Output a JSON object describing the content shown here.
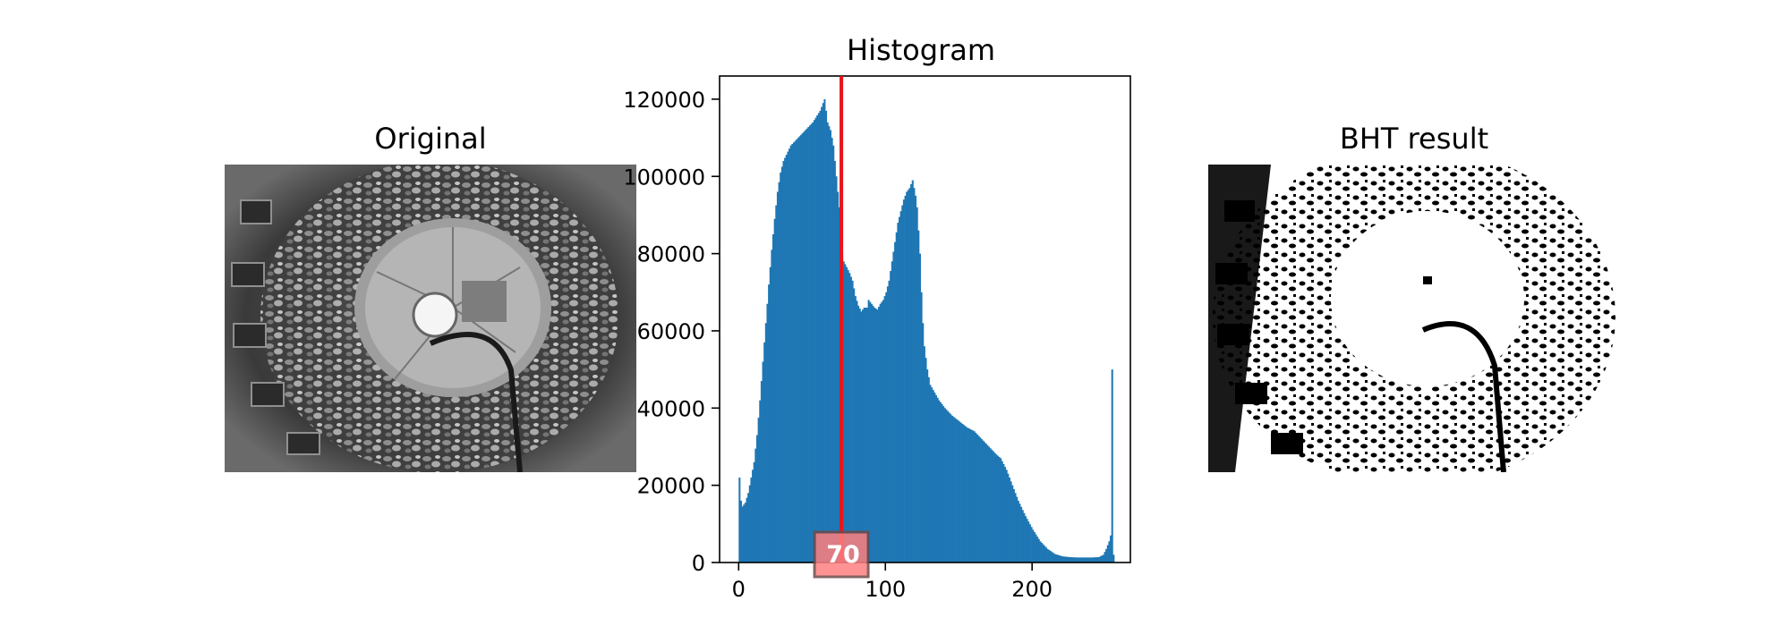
{
  "panels": {
    "original": {
      "title": "Original"
    },
    "histogram": {
      "title": "Histogram"
    },
    "result": {
      "title": "BHT result"
    }
  },
  "colors": {
    "bars": "#1f77b4",
    "threshold_line": "#e8141c",
    "threshold_box": "#ff7f7f",
    "axes": "#000000"
  },
  "chart_data": {
    "type": "bar",
    "title": "Histogram",
    "xlabel": "",
    "ylabel": "",
    "xlim": [
      -13,
      267
    ],
    "ylim": [
      0,
      126000
    ],
    "x_ticks": [
      0,
      100,
      200
    ],
    "y_ticks": [
      0,
      20000,
      40000,
      60000,
      80000,
      100000,
      120000
    ],
    "bins": 256,
    "profile": [
      [
        0,
        22000
      ],
      [
        1,
        16000
      ],
      [
        2,
        14500
      ],
      [
        4,
        15500
      ],
      [
        6,
        18000
      ],
      [
        8,
        22000
      ],
      [
        10,
        26000
      ],
      [
        12,
        33000
      ],
      [
        14,
        42000
      ],
      [
        16,
        52000
      ],
      [
        18,
        62000
      ],
      [
        20,
        72000
      ],
      [
        22,
        81000
      ],
      [
        24,
        89000
      ],
      [
        26,
        96000
      ],
      [
        28,
        101000
      ],
      [
        30,
        104000
      ],
      [
        35,
        108000
      ],
      [
        40,
        110000
      ],
      [
        45,
        112000
      ],
      [
        50,
        114000
      ],
      [
        55,
        117000
      ],
      [
        57,
        119000
      ],
      [
        58,
        120000
      ],
      [
        59,
        117000
      ],
      [
        60,
        114000
      ],
      [
        62,
        112000
      ],
      [
        64,
        108000
      ],
      [
        66,
        100000
      ],
      [
        68,
        92000
      ],
      [
        69,
        85000
      ],
      [
        70,
        80000
      ],
      [
        71,
        78000
      ],
      [
        73,
        76500
      ],
      [
        75,
        75000
      ],
      [
        77,
        73000
      ],
      [
        79,
        69000
      ],
      [
        81,
        66500
      ],
      [
        83,
        65000
      ],
      [
        85,
        66000
      ],
      [
        87,
        66000
      ],
      [
        88,
        68000
      ],
      [
        90,
        67000
      ],
      [
        92,
        66000
      ],
      [
        94,
        65500
      ],
      [
        96,
        67000
      ],
      [
        98,
        68000
      ],
      [
        100,
        70000
      ],
      [
        102,
        73000
      ],
      [
        104,
        78000
      ],
      [
        106,
        83000
      ],
      [
        108,
        88000
      ],
      [
        110,
        91000
      ],
      [
        112,
        94000
      ],
      [
        114,
        96000
      ],
      [
        116,
        97000
      ],
      [
        117,
        98000
      ],
      [
        118,
        99000
      ],
      [
        119,
        97000
      ],
      [
        120,
        95000
      ],
      [
        121,
        92000
      ],
      [
        122,
        86000
      ],
      [
        123,
        80000
      ],
      [
        124,
        70000
      ],
      [
        125,
        62000
      ],
      [
        126,
        56000
      ],
      [
        128,
        50000
      ],
      [
        130,
        46000
      ],
      [
        133,
        44000
      ],
      [
        136,
        42000
      ],
      [
        140,
        40000
      ],
      [
        145,
        38000
      ],
      [
        150,
        36500
      ],
      [
        155,
        35000
      ],
      [
        160,
        34000
      ],
      [
        165,
        32000
      ],
      [
        170,
        30000
      ],
      [
        175,
        28000
      ],
      [
        178,
        27000
      ],
      [
        182,
        24000
      ],
      [
        186,
        20000
      ],
      [
        190,
        16000
      ],
      [
        195,
        12000
      ],
      [
        200,
        8500
      ],
      [
        205,
        5500
      ],
      [
        210,
        3500
      ],
      [
        215,
        2200
      ],
      [
        220,
        1600
      ],
      [
        225,
        1400
      ],
      [
        230,
        1300
      ],
      [
        235,
        1300
      ],
      [
        240,
        1300
      ],
      [
        245,
        1400
      ],
      [
        248,
        2000
      ],
      [
        250,
        3500
      ],
      [
        252,
        5500
      ],
      [
        253,
        7000
      ],
      [
        254,
        50000
      ],
      [
        255,
        2000
      ]
    ],
    "threshold": {
      "value": 70,
      "label": "70"
    }
  }
}
